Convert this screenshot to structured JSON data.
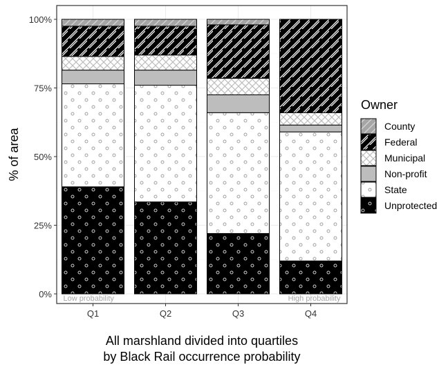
{
  "chart_data": {
    "type": "bar",
    "stacked": true,
    "categories": [
      "Q1",
      "Q2",
      "Q3",
      "Q4"
    ],
    "xlabel": "All marshland divided into quartiles by Black Rail occurrence probability",
    "xlabel_lines": [
      "All marshland divided into quartiles",
      "by Black Rail occurrence probability"
    ],
    "ylabel": "% of area",
    "ylim": [
      0,
      100
    ],
    "yticks": [
      0,
      25,
      50,
      75,
      100
    ],
    "ytick_labels": [
      "0%",
      "25%",
      "50%",
      "75%",
      "100%"
    ],
    "grid": true,
    "legend": {
      "title": "Owner",
      "placement": "right"
    },
    "series": [
      {
        "name": "Unprotected",
        "color": "#000000",
        "pattern": "open-circles-light",
        "values": [
          39,
          33.5,
          22,
          12
        ]
      },
      {
        "name": "State",
        "color": "#ffffff",
        "pattern": "open-circles-grey",
        "values": [
          37.5,
          42.5,
          44,
          47
        ]
      },
      {
        "name": "Non-profit",
        "color": "#bdbdbd",
        "pattern": "none",
        "values": [
          5,
          5.5,
          6.5,
          2.5
        ]
      },
      {
        "name": "Municipal",
        "color": "#ffffff",
        "pattern": "crosshatch-grey",
        "values": [
          5,
          5.5,
          6,
          4.5
        ]
      },
      {
        "name": "Federal",
        "color": "#000000",
        "pattern": "diagonal-white",
        "values": [
          11,
          10.5,
          19.5,
          34
        ]
      },
      {
        "name": "County",
        "color": "#a6a6a6",
        "pattern": "diagonal-grey",
        "values": [
          2.5,
          2.5,
          2,
          0
        ]
      }
    ],
    "annotations": [
      {
        "text": "Low probability",
        "category": "Q1",
        "anchor": "start"
      },
      {
        "text": "High probability",
        "category": "Q4",
        "anchor": "end"
      }
    ]
  }
}
